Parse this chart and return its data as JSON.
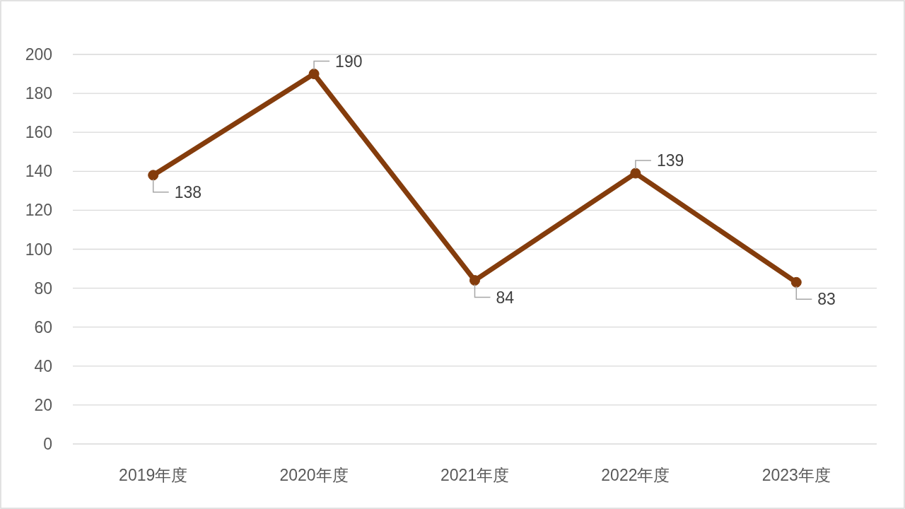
{
  "chart_data": {
    "type": "line",
    "categories": [
      "2019年度",
      "2020年度",
      "2021年度",
      "2022年度",
      "2023年度"
    ],
    "series": [
      {
        "color": "#843c0c",
        "values": [
          138,
          190,
          84,
          139,
          83
        ]
      }
    ],
    "ylim": [
      0,
      200
    ],
    "yticks": [
      0,
      20,
      40,
      60,
      80,
      100,
      120,
      140,
      160,
      180,
      200
    ],
    "grid": "y",
    "marker": "circle",
    "line_style": "solid",
    "data_labels": true
  }
}
